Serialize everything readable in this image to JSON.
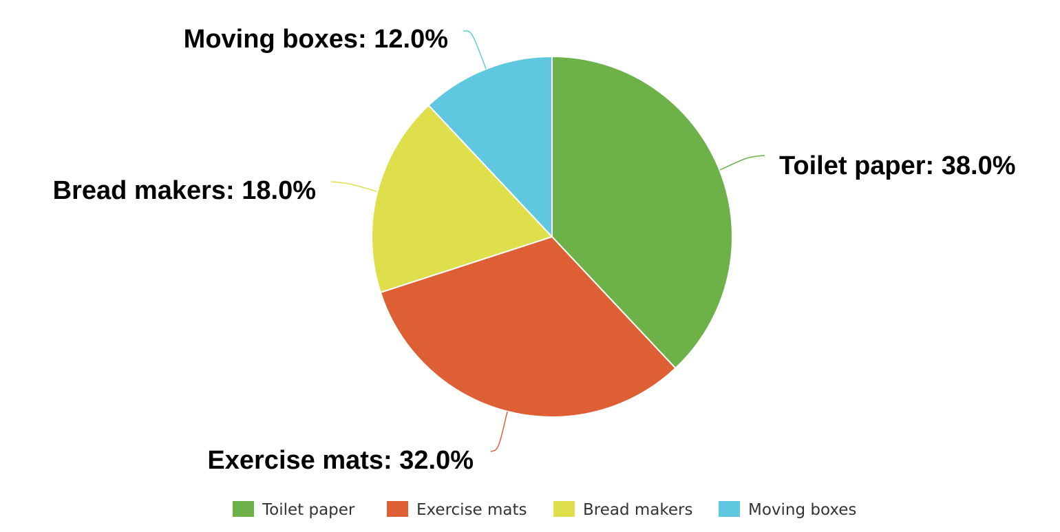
{
  "chart_data": {
    "type": "pie",
    "title": "",
    "categories": [
      "Toilet paper",
      "Exercise mats",
      "Bread makers",
      "Moving boxes"
    ],
    "values": [
      38.0,
      32.0,
      18.0,
      12.0
    ],
    "labels": [
      "Toilet paper: 38.0%",
      "Exercise mats: 32.0%",
      "Bread makers: 18.0%",
      "Moving boxes: 12.0%"
    ],
    "colors": [
      "#6cb249",
      "#de5f33",
      "#dedf4b",
      "#5fc8e0"
    ],
    "start_angle": "top, clockwise",
    "legend": {
      "position": "bottom",
      "items": [
        "Toilet paper",
        "Exercise mats",
        "Bread makers",
        "Moving boxes"
      ]
    }
  }
}
